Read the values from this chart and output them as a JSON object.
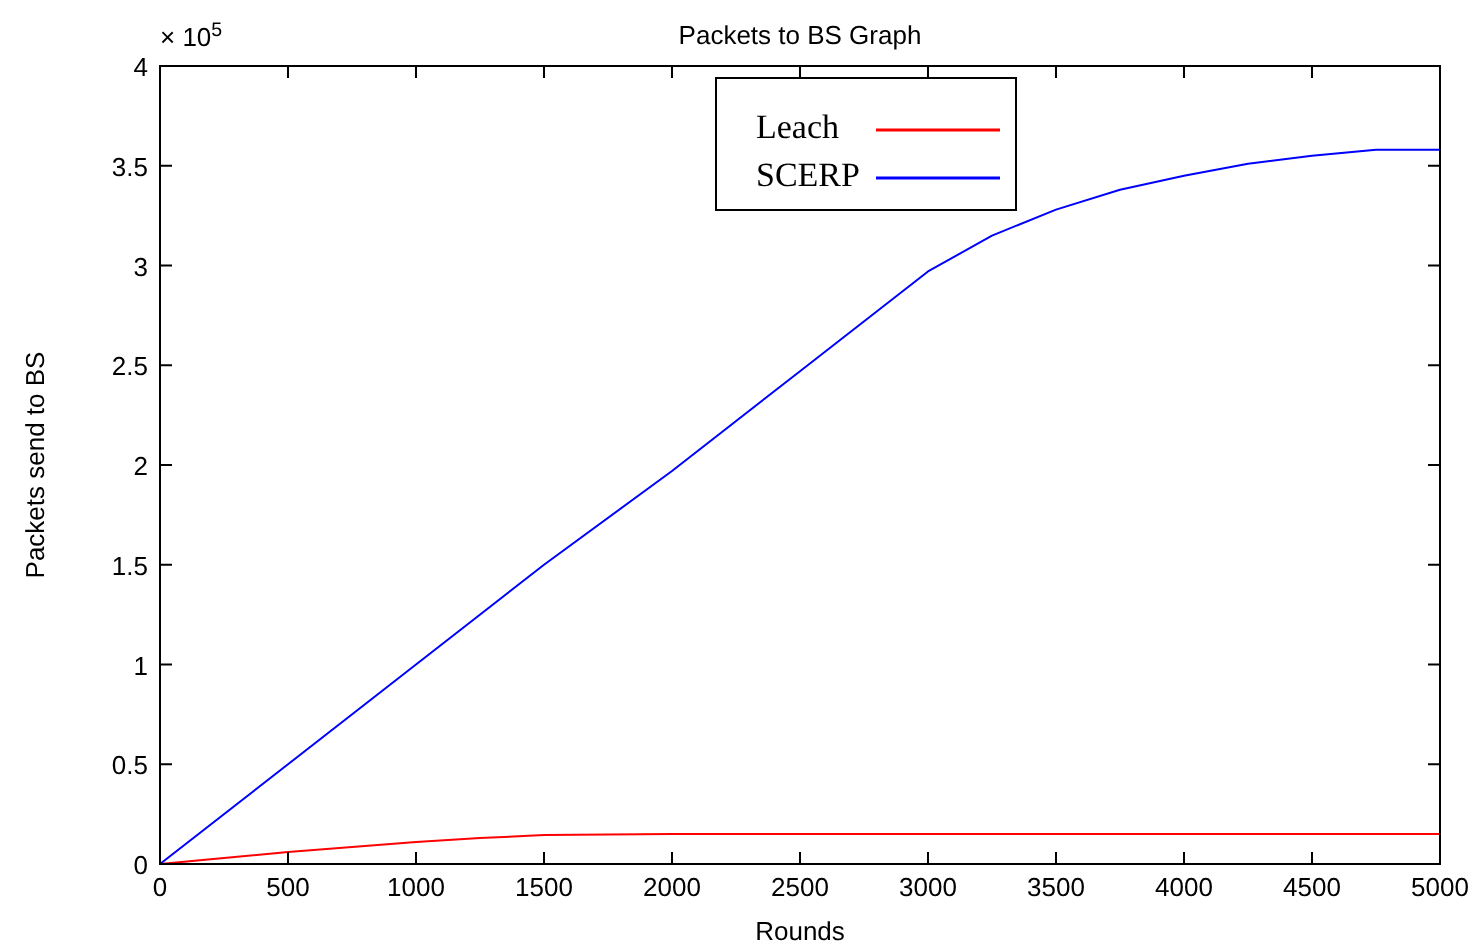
{
  "chart_data": {
    "type": "line",
    "title": "Packets to BS Graph",
    "xlabel": "Rounds",
    "ylabel": "Packets send to BS",
    "annotations": [
      "× 10$^{5}$"
    ],
    "xlim": [
      0,
      5000
    ],
    "xticks": [
      0,
      500,
      1000,
      1500,
      2000,
      2500,
      3000,
      3500,
      4000,
      4500,
      5000
    ],
    "ylim": [
      0,
      4
    ],
    "yticks": [
      0,
      0.5,
      1,
      1.5,
      2,
      2.5,
      3,
      3.5,
      4
    ],
    "grid": false,
    "legend": "top",
    "marker": "none",
    "line_style": "solid",
    "series": [
      {
        "name": "Leach",
        "color": "#ff0000",
        "x": [
          0,
          250,
          500,
          750,
          1000,
          1250,
          1500,
          1750,
          2000,
          3000,
          4000,
          5000
        ],
        "values": [
          0,
          0.03,
          0.06,
          0.085,
          0.11,
          0.13,
          0.145,
          0.148,
          0.15,
          0.15,
          0.15,
          0.15
        ]
      },
      {
        "name": "SCERP",
        "color": "#0000ff",
        "x": [
          0,
          500,
          1000,
          1500,
          2000,
          2500,
          3000,
          3250,
          3500,
          3750,
          4000,
          4250,
          4500,
          4750,
          5000
        ],
        "values": [
          0,
          0.5,
          1.0,
          1.5,
          1.97,
          2.47,
          2.97,
          3.15,
          3.28,
          3.38,
          3.45,
          3.51,
          3.55,
          3.58,
          3.58
        ]
      }
    ]
  }
}
